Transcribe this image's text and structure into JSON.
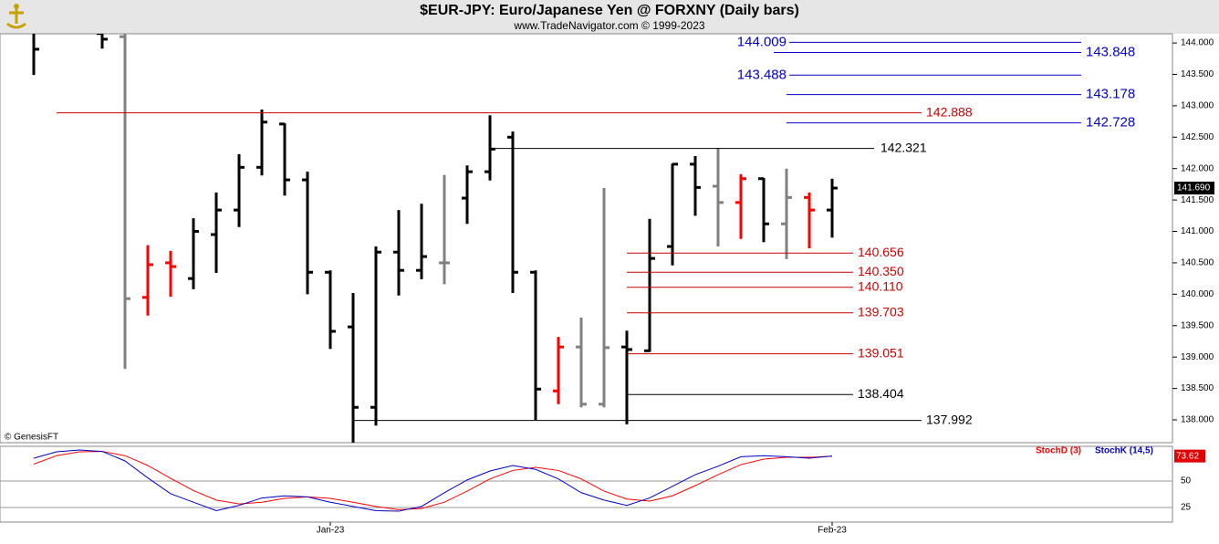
{
  "header": {
    "title": "$EUR-JPY:  Euro/Japanese Yen @ FORXNY  (Daily bars)",
    "subtitle": "www.TradeNavigator.com © 1999-2023",
    "source": "© GenesisFT"
  },
  "chart_data": [
    {
      "type": "ohlc",
      "open": [
        144.25,
        null,
        null,
        144.15,
        144.1,
        139.95,
        140.5,
        140.25,
        140.95,
        141.34,
        142.02,
        142.71,
        141.82,
        140.35,
        139.48,
        138.2,
        140.67,
        140.38,
        140.5,
        141.53,
        141.95,
        142.5,
        140.35,
        138.46,
        139.16,
        138.25,
        139.16,
        139.1,
        140.76,
        142.07,
        141.72,
        141.46,
        141.84,
        141.12,
        141.54,
        141.34
      ],
      "high": [
        144.3,
        null,
        null,
        144.2,
        144.2,
        140.78,
        140.69,
        141.21,
        141.62,
        142.23,
        142.94,
        142.72,
        141.95,
        140.38,
        140.02,
        140.76,
        141.34,
        141.44,
        141.9,
        142.05,
        142.85,
        142.59,
        140.38,
        139.32,
        139.63,
        141.69,
        139.42,
        141.2,
        142.08,
        142.2,
        142.32,
        141.91,
        141.85,
        142.0,
        141.62,
        141.84
      ],
      "low": [
        143.49,
        null,
        null,
        143.91,
        138.81,
        139.66,
        139.96,
        140.08,
        140.34,
        141.07,
        141.89,
        141.57,
        140.0,
        139.13,
        137.6,
        137.91,
        139.98,
        140.24,
        140.16,
        141.12,
        141.81,
        140.02,
        138.0,
        138.25,
        138.2,
        138.2,
        137.93,
        139.08,
        140.46,
        141.25,
        140.76,
        140.88,
        140.83,
        140.56,
        140.73,
        140.9
      ],
      "close": [
        143.9,
        null,
        null,
        144.06,
        139.93,
        140.47,
        140.44,
        141.0,
        141.34,
        142.02,
        142.74,
        141.82,
        140.35,
        139.41,
        138.2,
        140.67,
        140.38,
        140.6,
        140.5,
        141.95,
        142.31,
        140.35,
        138.49,
        139.16,
        138.25,
        139.15,
        139.12,
        140.57,
        142.07,
        141.7,
        141.46,
        141.84,
        141.12,
        141.54,
        141.34,
        141.69
      ],
      "colors": [
        "#000000",
        null,
        null,
        "#000000",
        "#808080",
        "#ff0000",
        "#ff0000",
        "#000000",
        "#000000",
        "#000000",
        "#000000",
        "#000000",
        "#000000",
        "#000000",
        "#000000",
        "#000000",
        "#000000",
        "#000000",
        "#808080",
        "#000000",
        "#000000",
        "#000000",
        "#000000",
        "#ff0000",
        "#808080",
        "#808080",
        "#000000",
        "#000000",
        "#000000",
        "#000000",
        "#808080",
        "#ff0000",
        "#000000",
        "#808080",
        "#ff0000",
        "#000000"
      ],
      "ylim": [
        137.637,
        144.146
      ],
      "yticks": [
        {
          "value": 138,
          "label": "138.000"
        },
        {
          "value": 138.5,
          "label": "138.500"
        },
        {
          "value": 139,
          "label": "139.000"
        },
        {
          "value": 139.5,
          "label": "139.500"
        },
        {
          "value": 140,
          "label": "140.000"
        },
        {
          "value": 140.5,
          "label": "140.500"
        },
        {
          "value": 141,
          "label": "141.000"
        },
        {
          "value": 141.5,
          "label": "141.500"
        },
        {
          "value": 142,
          "label": "142.000"
        },
        {
          "value": 142.5,
          "label": "142.500"
        },
        {
          "value": 143,
          "label": "143.000"
        },
        {
          "value": 143.5,
          "label": "143.500"
        },
        {
          "value": 144,
          "label": "144.000"
        }
      ],
      "last": {
        "value": 141.69,
        "label": "141.690"
      },
      "levels": [
        {
          "value": 144.009,
          "color": "#0000cc"
        },
        {
          "value": 143.848,
          "color": "#0000cc"
        },
        {
          "value": 143.488,
          "color": "#0000cc"
        },
        {
          "value": 143.178,
          "color": "#0000cc"
        },
        {
          "value": 142.728,
          "color": "#0000cc"
        },
        {
          "value": 142.888,
          "color": "#cc0000"
        },
        {
          "value": 142.321,
          "color": "#000000"
        },
        {
          "value": 140.656,
          "color": "#cc0000"
        },
        {
          "value": 140.35,
          "label": "140.350",
          "color": "#cc0000"
        },
        {
          "value": 140.11,
          "label": "140.110",
          "color": "#cc0000"
        },
        {
          "value": 139.703,
          "color": "#cc0000"
        },
        {
          "value": 139.051,
          "color": "#cc0000"
        },
        {
          "value": 138.404,
          "color": "#000000"
        },
        {
          "value": 137.992,
          "color": "#000000"
        }
      ]
    },
    {
      "type": "line",
      "categories": [
        null,
        null,
        null,
        null,
        null,
        null,
        null,
        null,
        null,
        null,
        null,
        null,
        null,
        "Jan-23",
        null,
        null,
        null,
        null,
        null,
        null,
        null,
        null,
        null,
        null,
        null,
        null,
        null,
        null,
        null,
        null,
        null,
        null,
        null,
        null,
        null,
        "Feb-23"
      ],
      "series": [
        {
          "name": "StochD (3)",
          "color": "#ff0000",
          "values": [
            66,
            74,
            77.6,
            78,
            74,
            64.7,
            52.6,
            41,
            32,
            28.4,
            30,
            33.6,
            35,
            33.6,
            30,
            26,
            23,
            24,
            30,
            40.5,
            52,
            60,
            63,
            60,
            52,
            40.5,
            33,
            31,
            36,
            45.7,
            56,
            65.5,
            70.7,
            72.4,
            72.4,
            73.4
          ]
        },
        {
          "name": "StochK (14,5)",
          "color": "#0000cc",
          "values": [
            71.6,
            77.6,
            79.3,
            78,
            69,
            53,
            38,
            30,
            22,
            27,
            34,
            36,
            35,
            30,
            26,
            22,
            21.5,
            26,
            39,
            51,
            59.5,
            64.7,
            61,
            52,
            39,
            32,
            27,
            34,
            45,
            56,
            64,
            73,
            74,
            73,
            71.6,
            73.62
          ]
        }
      ],
      "last": {
        "value": 73.62
      },
      "ylim": [
        11.2,
        82.8
      ],
      "yticks": [
        25,
        50
      ]
    }
  ]
}
